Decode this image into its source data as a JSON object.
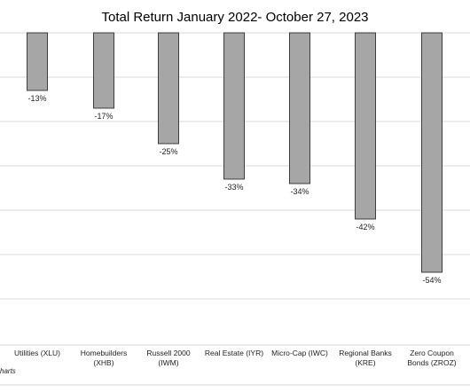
{
  "chart_data": {
    "type": "bar",
    "title": "Total Return January 2022- October 27, 2023",
    "categories": [
      [
        "Utilities  (XLU)"
      ],
      [
        "Homebuilders",
        "(XHB)"
      ],
      [
        "Russell 2000",
        "(IWM)"
      ],
      [
        "Real Estate (IYR)"
      ],
      [
        "Micro-Cap (IWC)"
      ],
      [
        "Regional Banks",
        "(KRE)"
      ],
      [
        "Zero Coupon",
        "Bonds (ZROZ)"
      ]
    ],
    "values": [
      -13,
      -17,
      -25,
      -33,
      -34,
      -42,
      -54
    ],
    "data_labels": [
      "-13%",
      "-17%",
      "-25%",
      "-33%",
      "-34%",
      "-42%",
      "-54%"
    ],
    "ylim": [
      -60,
      0
    ],
    "grid": true,
    "source_text": "harts",
    "colors": {
      "bar": "#a6a6a6",
      "bar_stroke": "#1a1a1a",
      "grid": "#d9d9d9"
    }
  }
}
